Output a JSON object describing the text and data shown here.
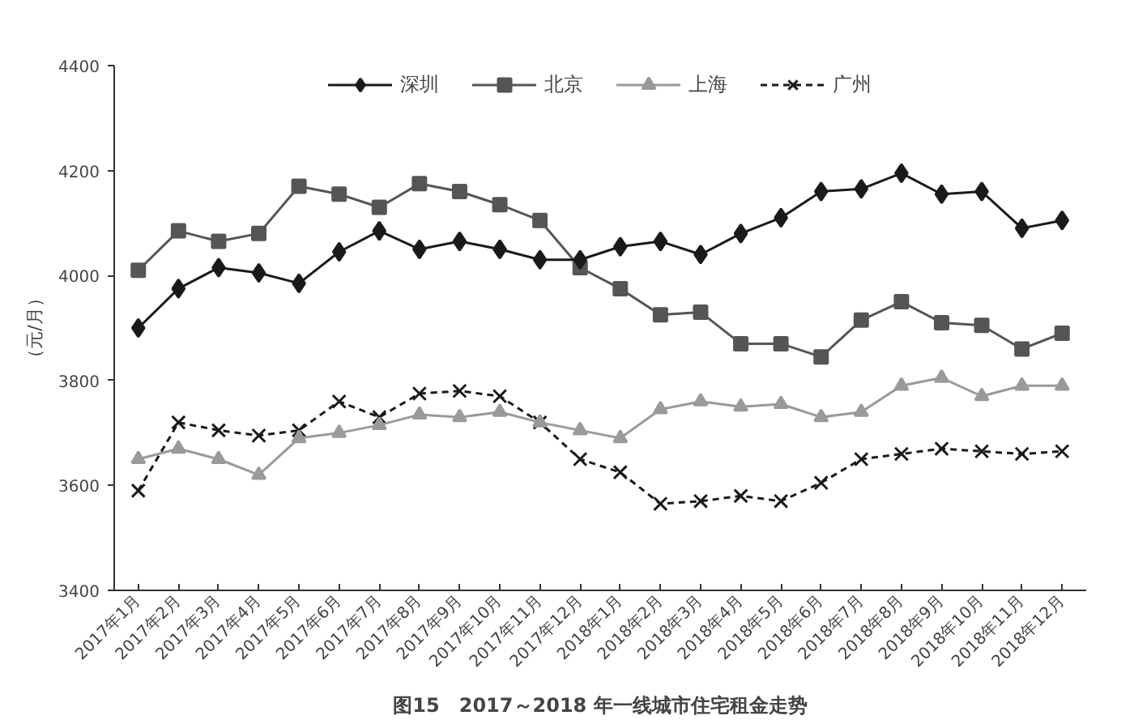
{
  "chart_data": {
    "type": "line",
    "title": "图15　2017～2018 年一线城市住宅租金走势",
    "ylabel": "（元/月）",
    "categories": [
      "2017年1月",
      "2017年2月",
      "2017年3月",
      "2017年4月",
      "2017年5月",
      "2017年6月",
      "2017年7月",
      "2017年8月",
      "2017年9月",
      "2017年10月",
      "2017年11月",
      "2017年12月",
      "2018年1月",
      "2018年2月",
      "2018年3月",
      "2018年4月",
      "2018年5月",
      "2018年6月",
      "2018年7月",
      "2018年8月",
      "2018年9月",
      "2018年10月",
      "2018年11月",
      "2018年12月"
    ],
    "series": [
      {
        "name": "深圳",
        "color": "#1a1a1a",
        "marker": "diamond",
        "line_style": "solid",
        "values": [
          3900,
          3975,
          4015,
          4005,
          3985,
          4045,
          4085,
          4050,
          4065,
          4050,
          4030,
          4030,
          4055,
          4065,
          4040,
          4080,
          4110,
          4160,
          4165,
          4195,
          4155,
          4160,
          4090,
          4105
        ]
      },
      {
        "name": "北京",
        "color": "#555555",
        "marker": "square",
        "line_style": "solid",
        "values": [
          4010,
          4085,
          4065,
          4080,
          4170,
          4155,
          4130,
          4175,
          4160,
          4135,
          4105,
          4015,
          3975,
          3925,
          3930,
          3870,
          3870,
          3845,
          3915,
          3950,
          3910,
          3905,
          3860,
          3890
        ]
      },
      {
        "name": "上海",
        "color": "#9a9a9a",
        "marker": "triangle",
        "line_style": "solid",
        "values": [
          3650,
          3670,
          3650,
          3620,
          3690,
          3700,
          3715,
          3735,
          3730,
          3740,
          3720,
          3705,
          3690,
          3745,
          3760,
          3750,
          3755,
          3730,
          3740,
          3790,
          3805,
          3770,
          3790,
          3790
        ]
      },
      {
        "name": "广州",
        "color": "#1a1a1a",
        "marker": "cross",
        "line_style": "dashed",
        "values": [
          3590,
          3720,
          3705,
          3695,
          3705,
          3760,
          3730,
          3775,
          3780,
          3770,
          3720,
          3650,
          3625,
          3565,
          3570,
          3580,
          3570,
          3605,
          3650,
          3660,
          3670,
          3665,
          3660,
          3665
        ]
      }
    ],
    "ylim": [
      3400,
      4400
    ],
    "yticks": [
      3400,
      3600,
      3800,
      4000,
      4200,
      4400
    ],
    "grid": false,
    "legend": "top"
  }
}
